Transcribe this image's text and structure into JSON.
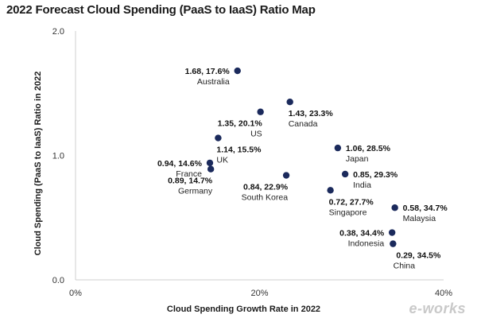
{
  "chart_data": {
    "type": "scatter",
    "title": "2022 Forecast Cloud Spending (PaaS to IaaS) Ratio Map",
    "xlabel": "Cloud Spending Growth Rate in 2022",
    "ylabel": "Cloud Spending (PaaS to IaaS) Ratio in 2022",
    "xlim": [
      0,
      40
    ],
    "ylim": [
      0,
      2.0
    ],
    "x_ticks": [
      {
        "value": 0,
        "label": "0%"
      },
      {
        "value": 20,
        "label": "20%"
      },
      {
        "value": 40,
        "label": "40%"
      }
    ],
    "y_ticks": [
      {
        "value": 0,
        "label": "0.0"
      },
      {
        "value": 1,
        "label": "1.0"
      },
      {
        "value": 2,
        "label": "2.0"
      }
    ],
    "grid": false,
    "marker_color": "#1b2a5c",
    "points": [
      {
        "country": "Australia",
        "x": 17.6,
        "y": 1.68,
        "label": "1.68, 17.6%",
        "label_side": "left"
      },
      {
        "country": "Canada",
        "x": 23.3,
        "y": 1.43,
        "label": "1.43, 23.3%",
        "label_side": "below-right"
      },
      {
        "country": "US",
        "x": 20.1,
        "y": 1.35,
        "label": "1.35, 20.1%",
        "label_side": "below-left"
      },
      {
        "country": "UK",
        "x": 15.5,
        "y": 1.14,
        "label": "1.14, 15.5%",
        "label_side": "below-right"
      },
      {
        "country": "Japan",
        "x": 28.5,
        "y": 1.06,
        "label": "1.06, 28.5%",
        "label_side": "right"
      },
      {
        "country": "France",
        "x": 14.6,
        "y": 0.94,
        "label": "0.94, 14.6%",
        "label_side": "left"
      },
      {
        "country": "Germany",
        "x": 14.7,
        "y": 0.89,
        "label": "0.89, 14.7%",
        "label_side": "below-left"
      },
      {
        "country": "India",
        "x": 29.3,
        "y": 0.85,
        "label": "0.85, 29.3%",
        "label_side": "right"
      },
      {
        "country": "South Korea",
        "x": 22.9,
        "y": 0.84,
        "label": "0.84, 22.9%",
        "label_side": "below-left"
      },
      {
        "country": "Singapore",
        "x": 27.7,
        "y": 0.72,
        "label": "0.72, 27.7%",
        "label_side": "below-right"
      },
      {
        "country": "Malaysia",
        "x": 34.7,
        "y": 0.58,
        "label": "0.58, 34.7%",
        "label_side": "right"
      },
      {
        "country": "Indonesia",
        "x": 34.4,
        "y": 0.38,
        "label": "0.38, 34.4%",
        "label_side": "left"
      },
      {
        "country": "China",
        "x": 34.5,
        "y": 0.29,
        "label": "0.29, 34.5%",
        "label_side": "below"
      }
    ]
  },
  "watermark": "e-works"
}
